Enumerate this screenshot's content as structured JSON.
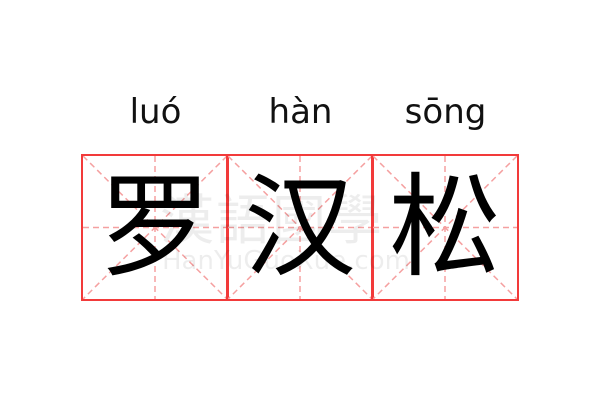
{
  "entry": {
    "characters": [
      {
        "hanzi": "罗",
        "pinyin": "luó"
      },
      {
        "hanzi": "汉",
        "pinyin": "hàn"
      },
      {
        "hanzi": "松",
        "pinyin": "sōng"
      }
    ]
  },
  "watermark": {
    "chinese": "漢語國學",
    "latin": "HanYuGuoXue.com"
  },
  "colors": {
    "grid_border": "#f23a3a",
    "grid_guides": "#f5a0a0",
    "text": "#000000"
  }
}
